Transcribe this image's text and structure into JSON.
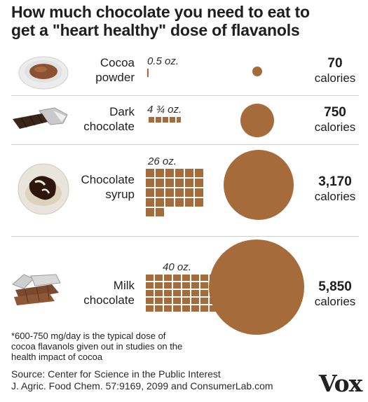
{
  "title": {
    "line1": "How much chocolate you need to eat to",
    "line2": "get a \"heart healthy\" dose of flavanols"
  },
  "chart_data": {
    "type": "table",
    "rows": [
      {
        "label_line1": "Cocoa",
        "label_line2": "powder",
        "ounces": 0.5,
        "ounces_label": "0.5 oz.",
        "calories": 70,
        "calories_label": "70",
        "calories_unit": "calories",
        "image": "cocoa-powder-bowl"
      },
      {
        "label_line1": "Dark",
        "label_line2": "chocolate",
        "ounces": 4.75,
        "ounces_label": "4 ¾ oz.",
        "calories": 750,
        "calories_label": "750",
        "calories_unit": "calories",
        "image": "dark-chocolate-bar"
      },
      {
        "label_line1": "Chocolate",
        "label_line2": "syrup",
        "ounces": 26,
        "ounces_label": "26 oz.",
        "calories": 3170,
        "calories_label": "3,170",
        "calories_unit": "calories",
        "image": "chocolate-syrup-dessert"
      },
      {
        "label_line1": "Milk",
        "label_line2": "chocolate",
        "ounces": 40,
        "ounces_label": "40 oz.",
        "calories": 5850,
        "calories_label": "5,850",
        "calories_unit": "calories",
        "image": "milk-chocolate-pieces"
      }
    ]
  },
  "footnote": {
    "line1": "*600-750 mg/day is the typical dose of",
    "line2": "cocoa flavanols given out in studies on the",
    "line3": "health impact of cocoa"
  },
  "source": {
    "line1": "Source:  Center for Science in the Public Interest",
    "line2": "J. Agric. Food Chem. 57:9169, 2099 and ConsumerLab.com"
  },
  "logo": "Vox",
  "colors": {
    "chocolate": "#a56b3a"
  }
}
